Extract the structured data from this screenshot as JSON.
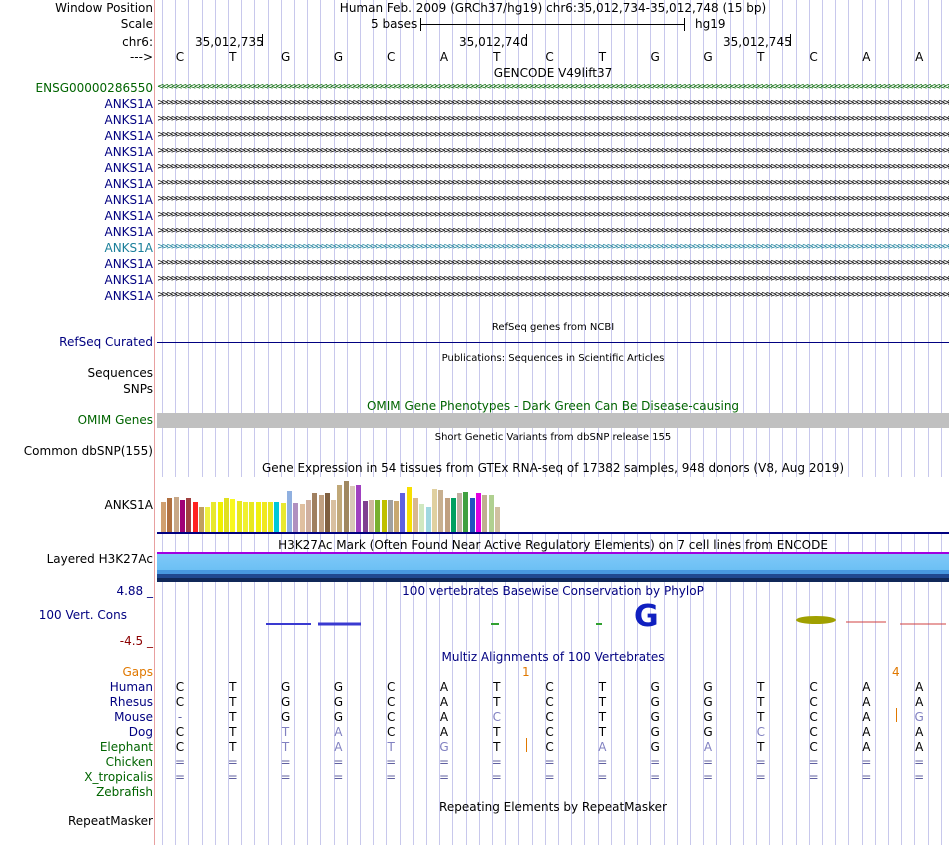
{
  "header": {
    "window_position_label": "Window Position",
    "scale_label": "Scale",
    "chr_label": "chr6:",
    "strand_label": "--->",
    "assembly_title": "Human Feb. 2009 (GRCh37/hg19)   chr6:35,012,734-35,012,748 (15 bp)",
    "scale_text": "5 bases",
    "db": "hg19",
    "ruler_positions": [
      "35,012,735",
      "35,012,740",
      "35,012,745"
    ],
    "bases": [
      "C",
      "T",
      "G",
      "G",
      "C",
      "A",
      "T",
      "C",
      "T",
      "G",
      "G",
      "T",
      "C",
      "A",
      "A"
    ]
  },
  "gencode": {
    "title": "GENCODE V49lift37",
    "gene_ensg": "ENSG00000286550",
    "transcripts": [
      "ANKS1A",
      "ANKS1A",
      "ANKS1A",
      "ANKS1A",
      "ANKS1A",
      "ANKS1A",
      "ANKS1A",
      "ANKS1A",
      "ANKS1A",
      "ANKS1A",
      "ANKS1A",
      "ANKS1A",
      "ANKS1A"
    ]
  },
  "refseq": {
    "title": "RefSeq genes from NCBI",
    "label": "RefSeq Curated"
  },
  "publications": {
    "title": "Publications: Sequences in Scientific Articles",
    "label1": "Sequences",
    "label2": "SNPs"
  },
  "omim": {
    "title": "OMIM Gene Phenotypes - Dark Green Can Be Disease-causing",
    "label": "OMIM Genes"
  },
  "dbsnp": {
    "title": "Short Genetic Variants from dbSNP release 155",
    "label": "Common dbSNP(155)"
  },
  "gtex": {
    "title": "Gene Expression in 54 tissues from GTEx RNA-seq of 17382 samples, 948 donors (V8, Aug 2019)",
    "label": "ANKS1A",
    "relative_levels": [
      0.54,
      0.62,
      0.64,
      0.58,
      0.62,
      0.54,
      0.46,
      0.45,
      0.54,
      0.54,
      0.62,
      0.6,
      0.56,
      0.54,
      0.54,
      0.54,
      0.54,
      0.54,
      0.54,
      0.52,
      0.74,
      0.52,
      0.5,
      0.58,
      0.7,
      0.68,
      0.7,
      0.58,
      0.86,
      0.92,
      0.84,
      0.86,
      0.56,
      0.59,
      0.59,
      0.58,
      0.58,
      0.56,
      0.7,
      0.81,
      0.62,
      0.5,
      0.46,
      0.79,
      0.76,
      0.62,
      0.62,
      0.7,
      0.72,
      0.62,
      0.7,
      0.68,
      0.68,
      0.45
    ],
    "colors": [
      "#d0a070",
      "#b07040",
      "#c8a888",
      "#a00078",
      "#a04040",
      "#ff2020",
      "#c0a060",
      "#f0f040",
      "#e8e830",
      "#f0f000",
      "#e0e020",
      "#f8f820",
      "#e8e820",
      "#f0f030",
      "#e8e820",
      "#f0f010",
      "#f0e820",
      "#e8e820",
      "#00c8d8",
      "#e8e830",
      "#90b0e0",
      "#b090c0",
      "#e0c0a0",
      "#d0b0a0",
      "#a08060",
      "#c0a080",
      "#806040",
      "#d8c0a0",
      "#c0a878",
      "#a08860",
      "#d8c8b8",
      "#a040c0",
      "#804090",
      "#d0b8a0",
      "#78b030",
      "#c0c000",
      "#a0a0a0",
      "#c8a870",
      "#6060e0",
      "#f8e000",
      "#d8b890",
      "#d0e8c0",
      "#a0d8e0",
      "#e0d0a0",
      "#c8b090",
      "#c0a080",
      "#00a060",
      "#c0b0a0",
      "#40a040",
      "#2050c0",
      "#e000e0",
      "#c0b090",
      "#b0d090",
      "#d0c0a0"
    ]
  },
  "h3k27ac": {
    "title": "H3K27Ac Mark (Often Found Near Active Regulatory Elements) on 7 cell lines from ENCODE",
    "label": "Layered H3K27Ac"
  },
  "phylop": {
    "title": "100 vertebrates Basewise Conservation by PhyloP",
    "label": "100 Vert. Cons",
    "max": "4.88 _",
    "min": "-4.5 _"
  },
  "multiz": {
    "title": "Multiz Alignments of 100 Vertebrates",
    "gaps_label": "Gaps",
    "gap_count_a": "1",
    "gap_count_b": "4",
    "species": [
      {
        "name": "Human",
        "seq": [
          "C",
          "T",
          "G",
          "G",
          "C",
          "A",
          "T",
          "C",
          "T",
          "G",
          "G",
          "T",
          "C",
          "A",
          "A"
        ]
      },
      {
        "name": "Rhesus",
        "seq": [
          "C",
          "T",
          "G",
          "G",
          "C",
          "A",
          "T",
          "C",
          "T",
          "G",
          "G",
          "T",
          "C",
          "A",
          "A"
        ]
      },
      {
        "name": "Mouse",
        "seq": [
          "-",
          "T",
          "G",
          "G",
          "C",
          "A",
          "C",
          "C",
          "T",
          "G",
          "G",
          "T",
          "C",
          "A",
          "G"
        ]
      },
      {
        "name": "Dog",
        "seq": [
          "C",
          "T",
          "T",
          "A",
          "C",
          "A",
          "T",
          "C",
          "T",
          "G",
          "G",
          "C",
          "C",
          "A",
          "A"
        ]
      },
      {
        "name": "Elephant",
        "seq": [
          "C",
          "T",
          "T",
          "A",
          "T",
          "G",
          "T",
          "C",
          "A",
          "G",
          "A",
          "T",
          "C",
          "A",
          "A"
        ]
      },
      {
        "name": "Chicken",
        "seq": [
          "=",
          "=",
          "=",
          "=",
          "=",
          "=",
          "=",
          "=",
          "=",
          "=",
          "=",
          "=",
          "=",
          "=",
          "="
        ]
      },
      {
        "name": "X_tropicalis",
        "seq": [
          "=",
          "=",
          "=",
          "=",
          "=",
          "=",
          "=",
          "=",
          "=",
          "=",
          "=",
          "=",
          "=",
          "=",
          "="
        ]
      },
      {
        "name": "Zebrafish",
        "seq": [
          "",
          "",
          "",
          "",
          "",
          "",
          "",
          "",
          "",
          "",
          "",
          "",
          "",
          "",
          ""
        ]
      }
    ]
  },
  "repeatmasker": {
    "title": "Repeating Elements by RepeatMasker",
    "label": "RepeatMasker"
  },
  "colors": {
    "navy": "#000080",
    "green": "#006400",
    "orange": "#e07800",
    "teal": "#1a7f9a",
    "omim_bar": "#c0c0c0"
  }
}
